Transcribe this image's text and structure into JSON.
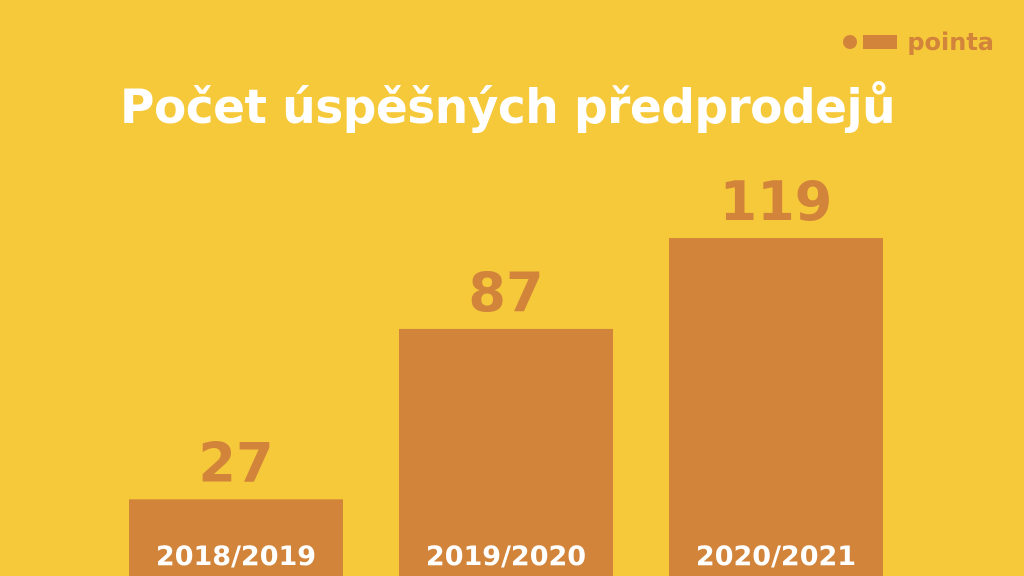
{
  "brand": {
    "name": "pointa",
    "color": "#D2843A"
  },
  "colors": {
    "background": "#F6C93B",
    "bar": "#D2843A",
    "title": "#FFFFFF",
    "value_label": "#D2843A",
    "category_label": "#FFFFFF"
  },
  "chart_data": {
    "type": "bar",
    "title": "Počet úspěšných předprodejů",
    "categories": [
      "2018/2019",
      "2019/2020",
      "2020/2021"
    ],
    "values": [
      27,
      87,
      119
    ],
    "value_labels": [
      "27",
      "87",
      "119"
    ],
    "xlabel": "",
    "ylabel": "",
    "grid": false
  }
}
